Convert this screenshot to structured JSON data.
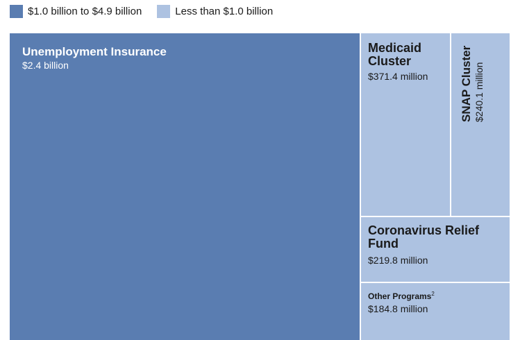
{
  "legend": {
    "items": [
      {
        "label": "$1.0 billion to $4.9 billion",
        "color": "#5a7db1"
      },
      {
        "label": "Less than $1.0 billion",
        "color": "#adc2e1"
      }
    ]
  },
  "chart_data": {
    "type": "treemap",
    "title": "",
    "categories": [
      {
        "name": "$1.0 billion to $4.9 billion",
        "color": "#5a7db1"
      },
      {
        "name": "Less than $1.0 billion",
        "color": "#adc2e1"
      }
    ],
    "items": [
      {
        "name": "Unemployment Insurance",
        "amount_label": "$2.4 billion",
        "value": 2400,
        "unit": "million USD",
        "category": "$1.0 billion to $4.9 billion"
      },
      {
        "name": "Medicaid Cluster",
        "amount_label": "$371.4 million",
        "value": 371.4,
        "unit": "million USD",
        "category": "Less than $1.0 billion"
      },
      {
        "name": "SNAP Cluster",
        "amount_label": "$240.1 million",
        "value": 240.1,
        "unit": "million USD",
        "category": "Less than $1.0 billion"
      },
      {
        "name": "Coronavirus Relief Fund",
        "amount_label": "$219.8 million",
        "value": 219.8,
        "unit": "million USD",
        "category": "Less than $1.0 billion"
      },
      {
        "name": "Other Programs",
        "footnote": "2",
        "amount_label": "$184.8 million",
        "value": 184.8,
        "unit": "million USD",
        "category": "Less than $1.0 billion"
      }
    ]
  }
}
